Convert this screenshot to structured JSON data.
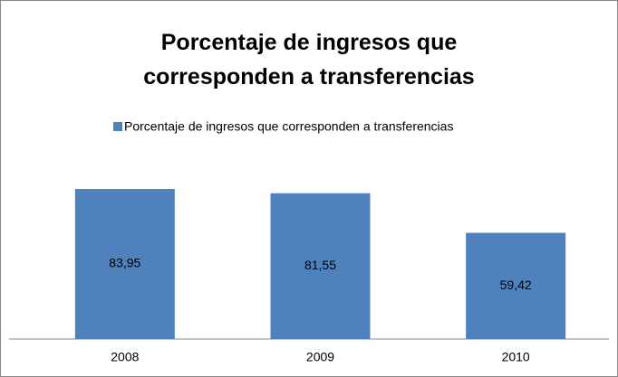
{
  "chart_data": {
    "type": "bar",
    "title": "Porcentaje de ingresos que corresponden a transferencias",
    "categories": [
      "2008",
      "2009",
      "2010"
    ],
    "series": [
      {
        "name": "Porcentaje de ingresos que corresponden a transferencias",
        "color": "#4f81bd",
        "values": [
          83.95,
          81.55,
          59.42
        ],
        "value_labels": [
          "83,95",
          "81,55",
          "59,42"
        ]
      }
    ]
  }
}
